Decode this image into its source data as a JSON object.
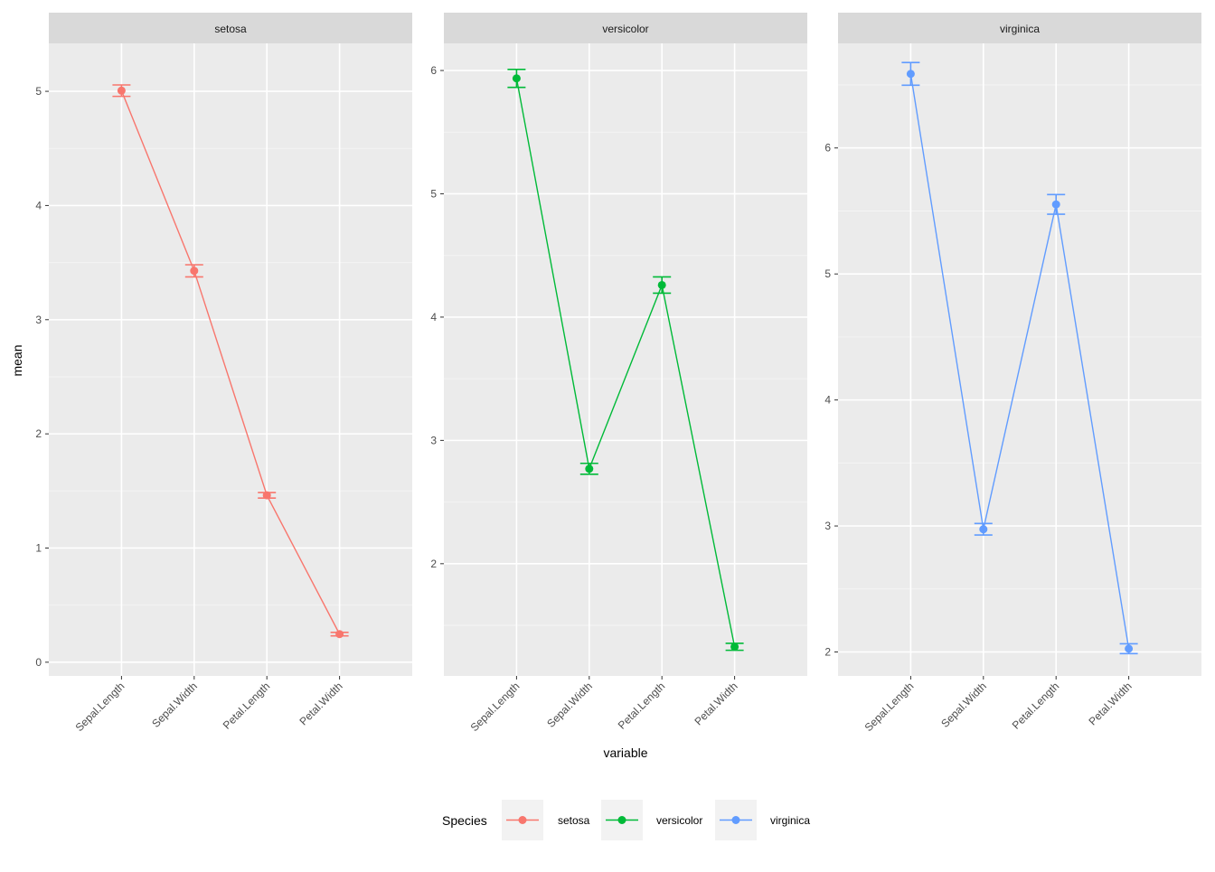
{
  "chart_data": {
    "type": "line",
    "facet_by": "Species",
    "xlabel": "variable",
    "ylabel": "mean",
    "categories": [
      "Sepal.Length",
      "Sepal.Width",
      "Petal.Length",
      "Petal.Width"
    ],
    "legend": {
      "title": "Species",
      "position": "bottom",
      "entries": [
        {
          "label": "setosa",
          "color": "#F8766D"
        },
        {
          "label": "versicolor",
          "color": "#00BA38"
        },
        {
          "label": "virginica",
          "color": "#619CFF"
        }
      ]
    },
    "panels": [
      {
        "title": "setosa",
        "color": "#F8766D",
        "ylim": [
          -0.12,
          5.42
        ],
        "yticks": [
          0,
          1,
          2,
          3,
          4,
          5
        ],
        "mean": [
          5.006,
          3.428,
          1.462,
          0.246
        ],
        "err_low": [
          4.956,
          3.375,
          1.438,
          0.231
        ],
        "err_high": [
          5.056,
          3.481,
          1.486,
          0.261
        ]
      },
      {
        "title": "versicolor",
        "color": "#00BA38",
        "ylim": [
          1.09,
          6.22
        ],
        "yticks": [
          2,
          3,
          4,
          5,
          6
        ],
        "mean": [
          5.936,
          2.77,
          4.26,
          1.326
        ],
        "err_low": [
          5.863,
          2.726,
          4.194,
          1.298
        ],
        "err_high": [
          6.009,
          2.814,
          4.326,
          1.354
        ]
      },
      {
        "title": "virginica",
        "color": "#619CFF",
        "ylim": [
          1.81,
          6.83
        ],
        "yticks": [
          2,
          3,
          4,
          5,
          6
        ],
        "mean": [
          6.588,
          2.974,
          5.552,
          2.026
        ],
        "err_low": [
          6.498,
          2.928,
          5.474,
          1.987
        ],
        "err_high": [
          6.678,
          3.02,
          5.63,
          2.065
        ]
      }
    ]
  }
}
